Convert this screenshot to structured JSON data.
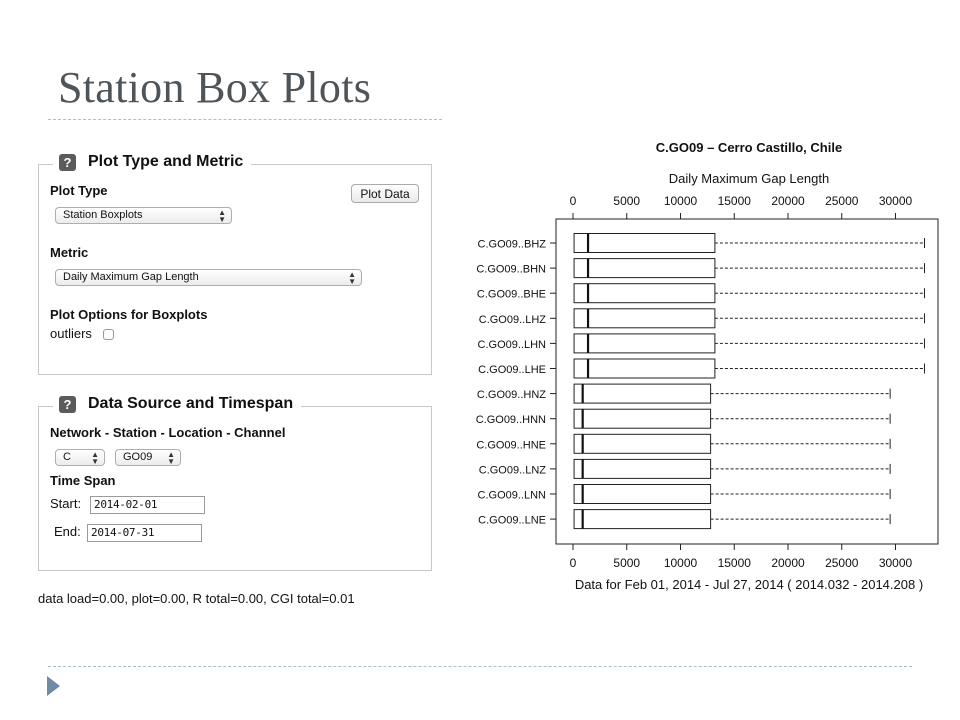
{
  "slide": {
    "title": "Station Box Plots"
  },
  "plot_type_panel": {
    "legend": "Plot Type and Metric",
    "help_glyph": "?",
    "plot_type_label": "Plot Type",
    "plot_type_value": "Station Boxplots",
    "plot_button": "Plot Data",
    "metric_label": "Metric",
    "metric_value": "Daily Maximum Gap Length",
    "options_label": "Plot Options for Boxplots",
    "outliers_label": "outliers",
    "outliers_checked": false
  },
  "data_source_panel": {
    "legend": "Data Source and Timespan",
    "help_glyph": "?",
    "nslc_label": "Network - Station - Location - Channel",
    "network_value": "C",
    "station_value": "GO09",
    "timespan_label": "Time Span",
    "start_label": "Start:",
    "start_value": "2014-02-01",
    "end_label": "End:",
    "end_value": "2014-07-31"
  },
  "timing": "data load=0.00, plot=0.00, R total=0.00, CGI total=0.01",
  "chart_data": {
    "type": "boxplot",
    "orientation": "horizontal",
    "title": "C.GO09 – Cerro Castillo, Chile",
    "top_axis_label": "Daily Maximum Gap Length",
    "bottom_axis_label": "Data for Feb 01, 2014 - Jul 27, 2014 ( 2014.032 - 2014.208 )",
    "xlim": [
      0,
      33000
    ],
    "ticks": [
      0,
      5000,
      10000,
      15000,
      20000,
      25000,
      30000
    ],
    "grid": false,
    "categories": [
      "C.GO09..BHZ",
      "C.GO09..BHN",
      "C.GO09..BHE",
      "C.GO09..LHZ",
      "C.GO09..LHN",
      "C.GO09..LHE",
      "C.GO09..HNZ",
      "C.GO09..HNN",
      "C.GO09..HNE",
      "C.GO09..LNZ",
      "C.GO09..LNN",
      "C.GO09..LNE"
    ],
    "boxes": [
      {
        "min": 0,
        "q1": 100,
        "median": 1400,
        "q3": 13200,
        "max": 32700
      },
      {
        "min": 0,
        "q1": 100,
        "median": 1400,
        "q3": 13200,
        "max": 32700
      },
      {
        "min": 0,
        "q1": 100,
        "median": 1400,
        "q3": 13200,
        "max": 32700
      },
      {
        "min": 0,
        "q1": 100,
        "median": 1400,
        "q3": 13200,
        "max": 32700
      },
      {
        "min": 0,
        "q1": 100,
        "median": 1400,
        "q3": 13200,
        "max": 32700
      },
      {
        "min": 0,
        "q1": 100,
        "median": 1400,
        "q3": 13200,
        "max": 32700
      },
      {
        "min": 0,
        "q1": 100,
        "median": 900,
        "q3": 12800,
        "max": 29500
      },
      {
        "min": 0,
        "q1": 100,
        "median": 900,
        "q3": 12800,
        "max": 29500
      },
      {
        "min": 0,
        "q1": 100,
        "median": 900,
        "q3": 12800,
        "max": 29500
      },
      {
        "min": 0,
        "q1": 100,
        "median": 900,
        "q3": 12800,
        "max": 29500
      },
      {
        "min": 0,
        "q1": 100,
        "median": 900,
        "q3": 12800,
        "max": 29500
      },
      {
        "min": 0,
        "q1": 100,
        "median": 900,
        "q3": 12800,
        "max": 29500
      }
    ]
  }
}
